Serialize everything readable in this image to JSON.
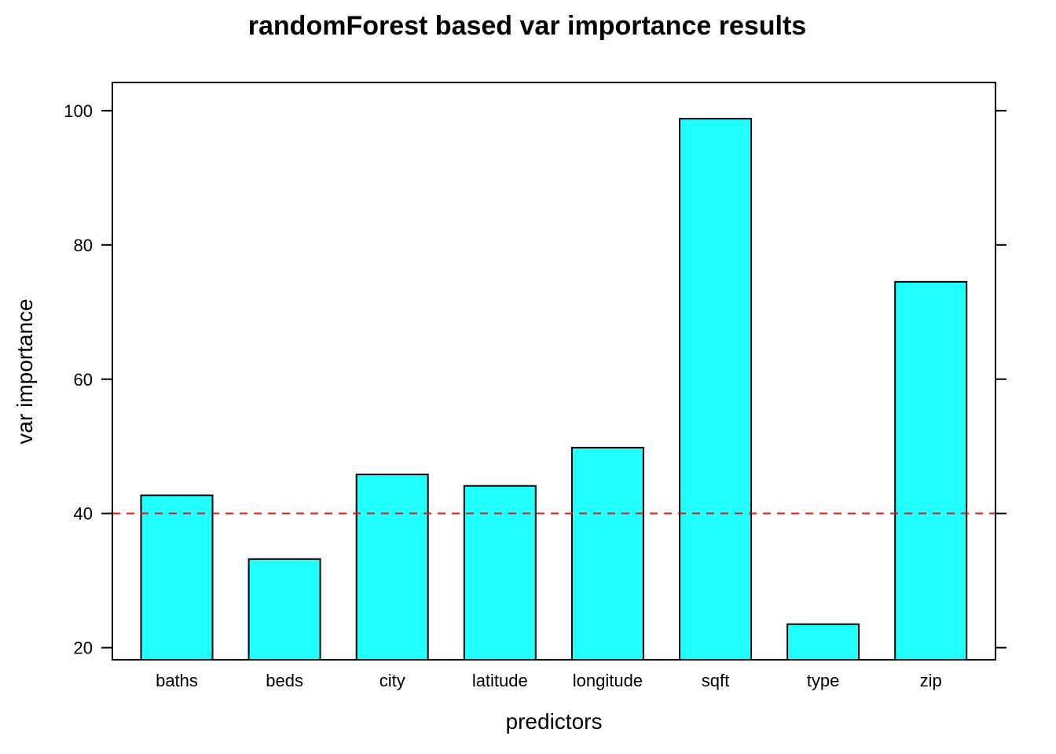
{
  "chart_data": {
    "type": "bar",
    "title": "randomForest based var importance results",
    "xlabel": "predictors",
    "ylabel": "var importance",
    "categories": [
      "baths",
      "beds",
      "city",
      "latitude",
      "longitude",
      "sqft",
      "type",
      "zip"
    ],
    "values": [
      42.7,
      33.2,
      45.8,
      44.1,
      49.8,
      98.8,
      23.5,
      74.5
    ],
    "ylim": [
      18.2,
      104.2
    ],
    "yticks": [
      "20",
      "40",
      "60",
      "80",
      "100"
    ],
    "reference_line": {
      "y": 40,
      "style": "dashed",
      "color": "#ee1111"
    },
    "bar_color": "#22ffff",
    "grid": false,
    "legend": "none"
  }
}
